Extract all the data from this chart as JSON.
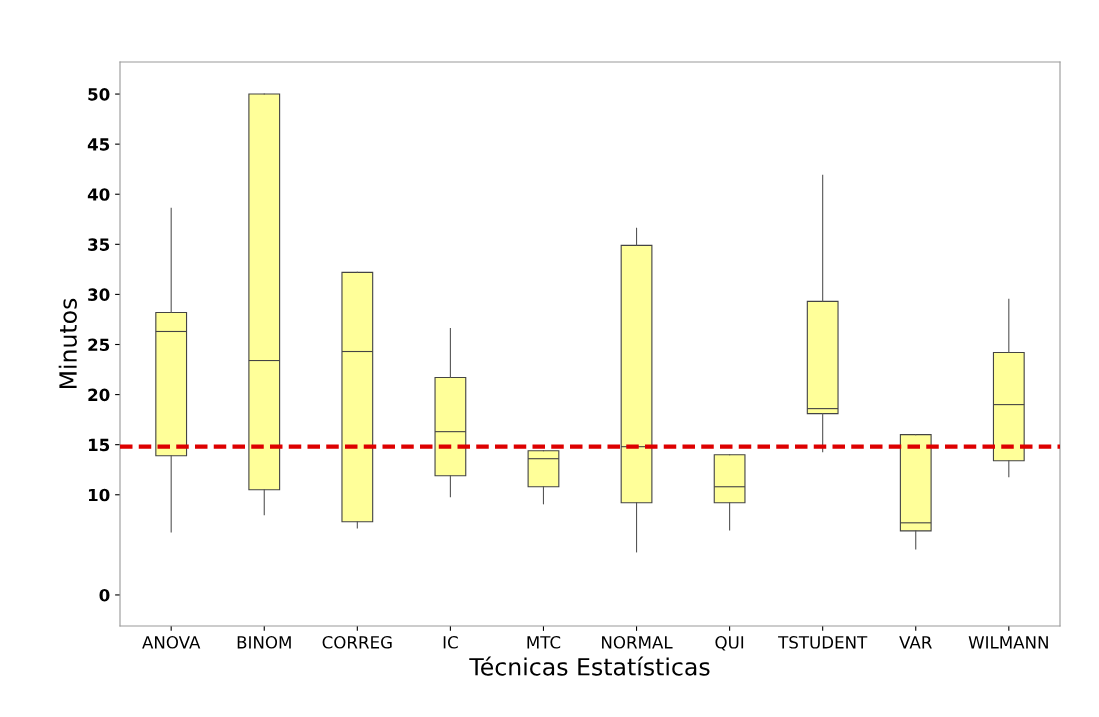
{
  "chart_data": {
    "type": "box",
    "xlabel": "Técnicas Estatísticas",
    "ylabel": "Minutos",
    "categories": [
      "ANOVA",
      "BINOM",
      "CORREG",
      "IC",
      "MTC",
      "NORMAL",
      "QUI",
      "TSTUDENT",
      "VAR",
      "WILMANN"
    ],
    "color": "#ffff99",
    "boxes": [
      {
        "low": 6.3,
        "q1": 13.9,
        "median": 26.3,
        "q3": 28.2,
        "high": 38.6
      },
      {
        "low": 8.0,
        "q1": 10.5,
        "median": 23.4,
        "q3": 50.0,
        "high": 50.0
      },
      {
        "low": 6.7,
        "q1": 7.3,
        "median": 24.3,
        "q3": 32.2,
        "high": 32.2
      },
      {
        "low": 9.8,
        "q1": 11.9,
        "median": 16.3,
        "q3": 21.7,
        "high": 26.6
      },
      {
        "low": 9.1,
        "q1": 10.8,
        "median": 13.6,
        "q3": 14.4,
        "high": 14.4
      },
      {
        "low": 4.3,
        "q1": 9.2,
        "median": 14.8,
        "q3": 34.9,
        "high": 36.6
      },
      {
        "low": 6.5,
        "q1": 9.2,
        "median": 10.8,
        "q3": 14.0,
        "high": 14.0
      },
      {
        "low": 14.3,
        "q1": 18.1,
        "median": 18.6,
        "q3": 29.3,
        "high": 41.9
      },
      {
        "low": 4.6,
        "q1": 6.4,
        "median": 7.2,
        "q3": 16.0,
        "high": 16.0
      },
      {
        "low": 11.8,
        "q1": 13.4,
        "median": 19.0,
        "q3": 24.2,
        "high": 29.5
      }
    ],
    "ylim": [
      -3.1,
      53.2
    ],
    "yticks": [
      0,
      10,
      15,
      20,
      25,
      30,
      35,
      40,
      45,
      50
    ],
    "ref_lines": [
      {
        "axis": "y",
        "value": 14.8,
        "color": "#dd0000",
        "line_style": "dashed"
      }
    ],
    "grid": false,
    "legend": false
  }
}
